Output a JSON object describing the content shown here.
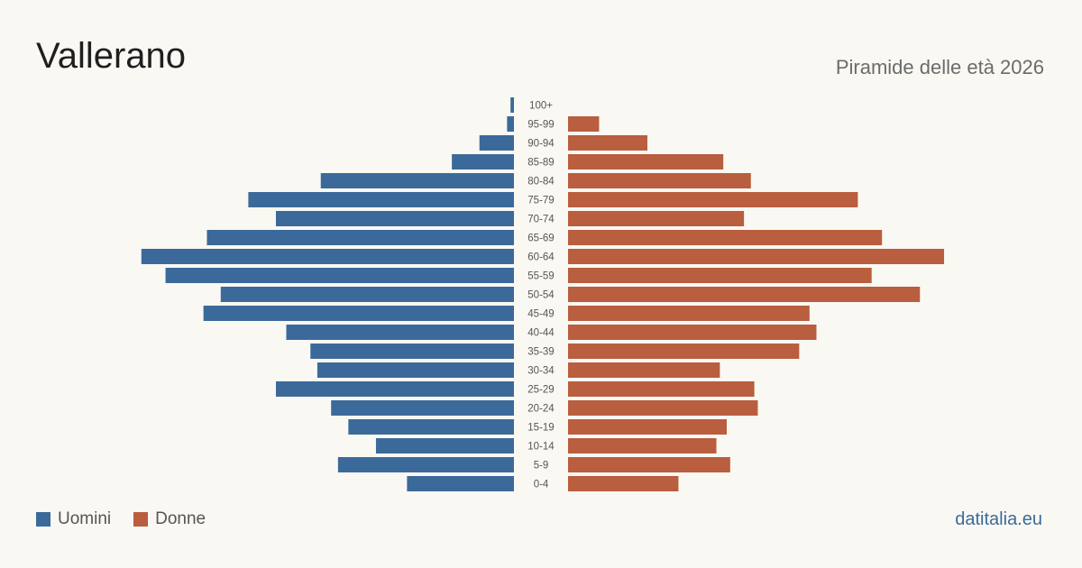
{
  "header": {
    "title": "Vallerano",
    "subtitle": "Piramide delle età 2026"
  },
  "legend": {
    "men_label": "Uomini",
    "women_label": "Donne"
  },
  "footer": {
    "brand": "datitalia.eu"
  },
  "colors": {
    "men": "#3b6a9a",
    "women": "#b95e3e",
    "background": "#faf8f3"
  },
  "chart_data": {
    "type": "bar",
    "orientation": "horizontal-pyramid",
    "categories": [
      "100+",
      "95-99",
      "90-94",
      "85-89",
      "80-84",
      "75-79",
      "70-74",
      "65-69",
      "60-64",
      "55-59",
      "50-54",
      "45-49",
      "40-44",
      "35-39",
      "30-34",
      "25-29",
      "20-24",
      "15-19",
      "10-14",
      "5-9",
      "0-4"
    ],
    "series": [
      {
        "name": "Uomini",
        "values": [
          1,
          2,
          10,
          18,
          56,
          77,
          69,
          89,
          108,
          101,
          85,
          90,
          66,
          59,
          57,
          69,
          53,
          48,
          40,
          51,
          31
        ]
      },
      {
        "name": "Donne",
        "values": [
          0,
          9,
          23,
          45,
          53,
          84,
          51,
          91,
          109,
          88,
          102,
          70,
          72,
          67,
          44,
          54,
          55,
          46,
          43,
          47,
          32
        ]
      }
    ],
    "xlim": [
      0,
      115
    ],
    "grid": false,
    "legend_position": "bottom-left"
  }
}
